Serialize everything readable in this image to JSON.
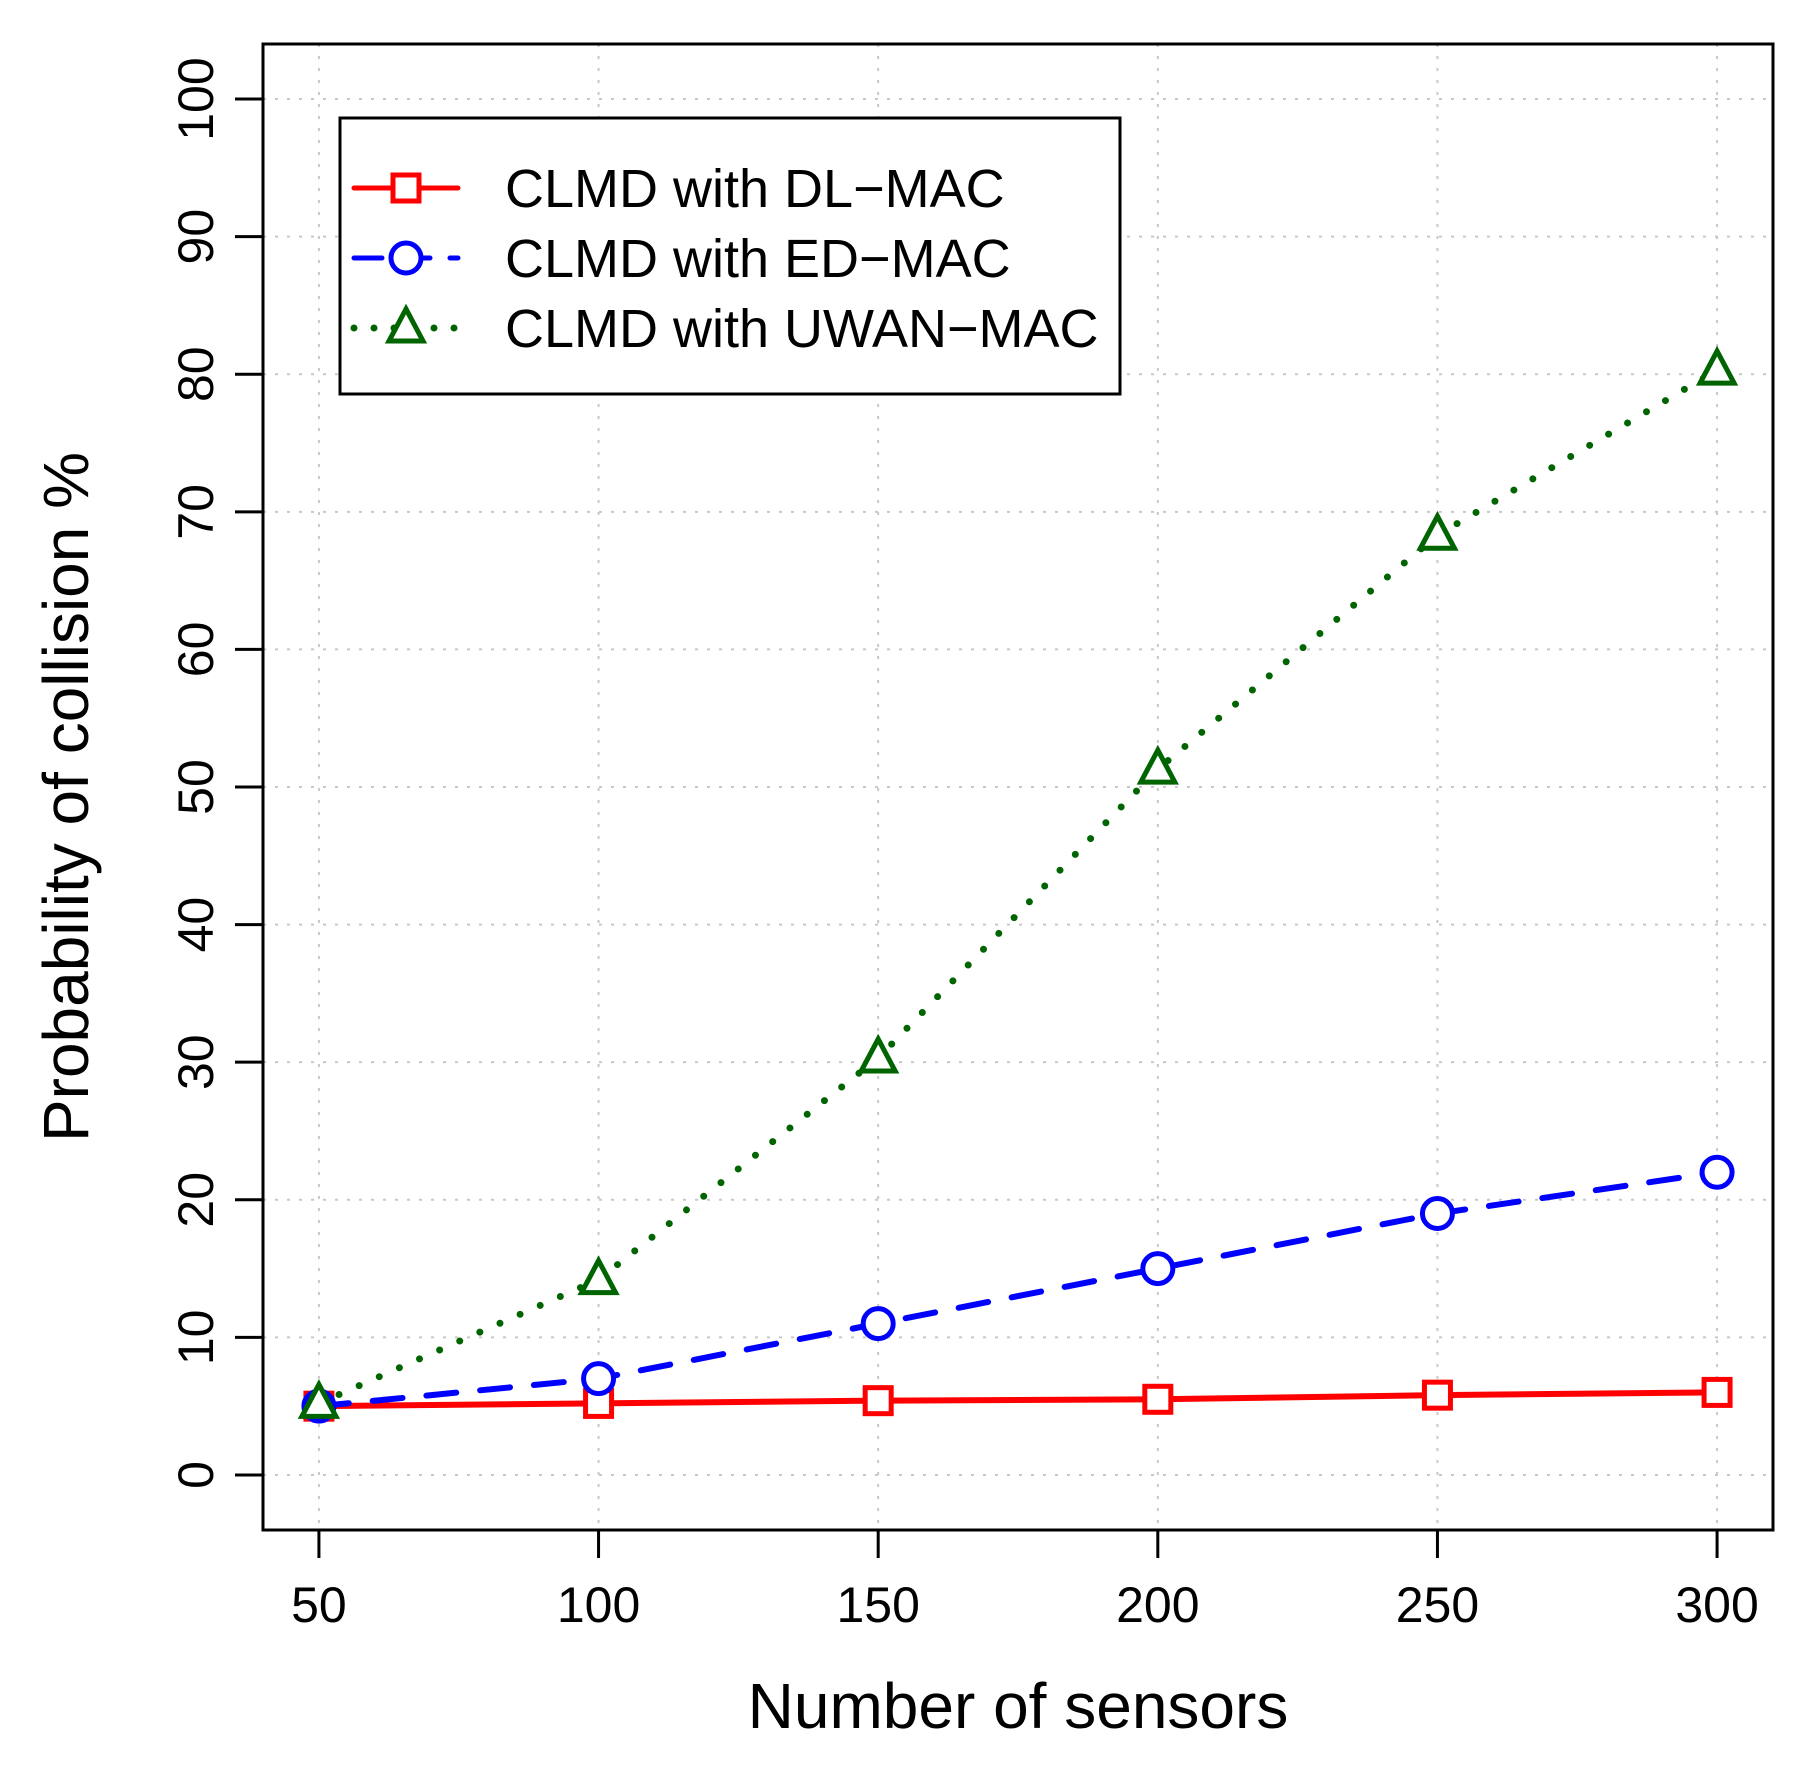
{
  "chart_data": {
    "type": "line",
    "title": "",
    "xlabel": "Number of sensors",
    "ylabel": "Probability of collision %",
    "x": [
      50,
      100,
      150,
      200,
      250,
      300
    ],
    "xlim": [
      40,
      310
    ],
    "ylim": [
      -4,
      104
    ],
    "xticks": [
      "50",
      "100",
      "150",
      "200",
      "250",
      "300"
    ],
    "yticks": [
      "0",
      "10",
      "20",
      "30",
      "40",
      "50",
      "60",
      "70",
      "80",
      "90",
      "100"
    ],
    "grid": true,
    "legend_position": "top-left",
    "series": [
      {
        "name": "CLMD with DL−MAC",
        "values": [
          5,
          5.2,
          5.4,
          5.5,
          5.8,
          6
        ],
        "color": "#ff0000",
        "line": "solid",
        "marker": "square"
      },
      {
        "name": "CLMD with ED−MAC",
        "values": [
          5,
          7,
          11,
          15,
          19,
          22
        ],
        "color": "#0000ff",
        "line": "dashed",
        "marker": "circle"
      },
      {
        "name": "CLMD with UWAN−MAC",
        "values": [
          5.2,
          14.2,
          30.3,
          51.3,
          68.3,
          80.3
        ],
        "color": "#006400",
        "line": "dotted",
        "marker": "triangle"
      }
    ]
  }
}
